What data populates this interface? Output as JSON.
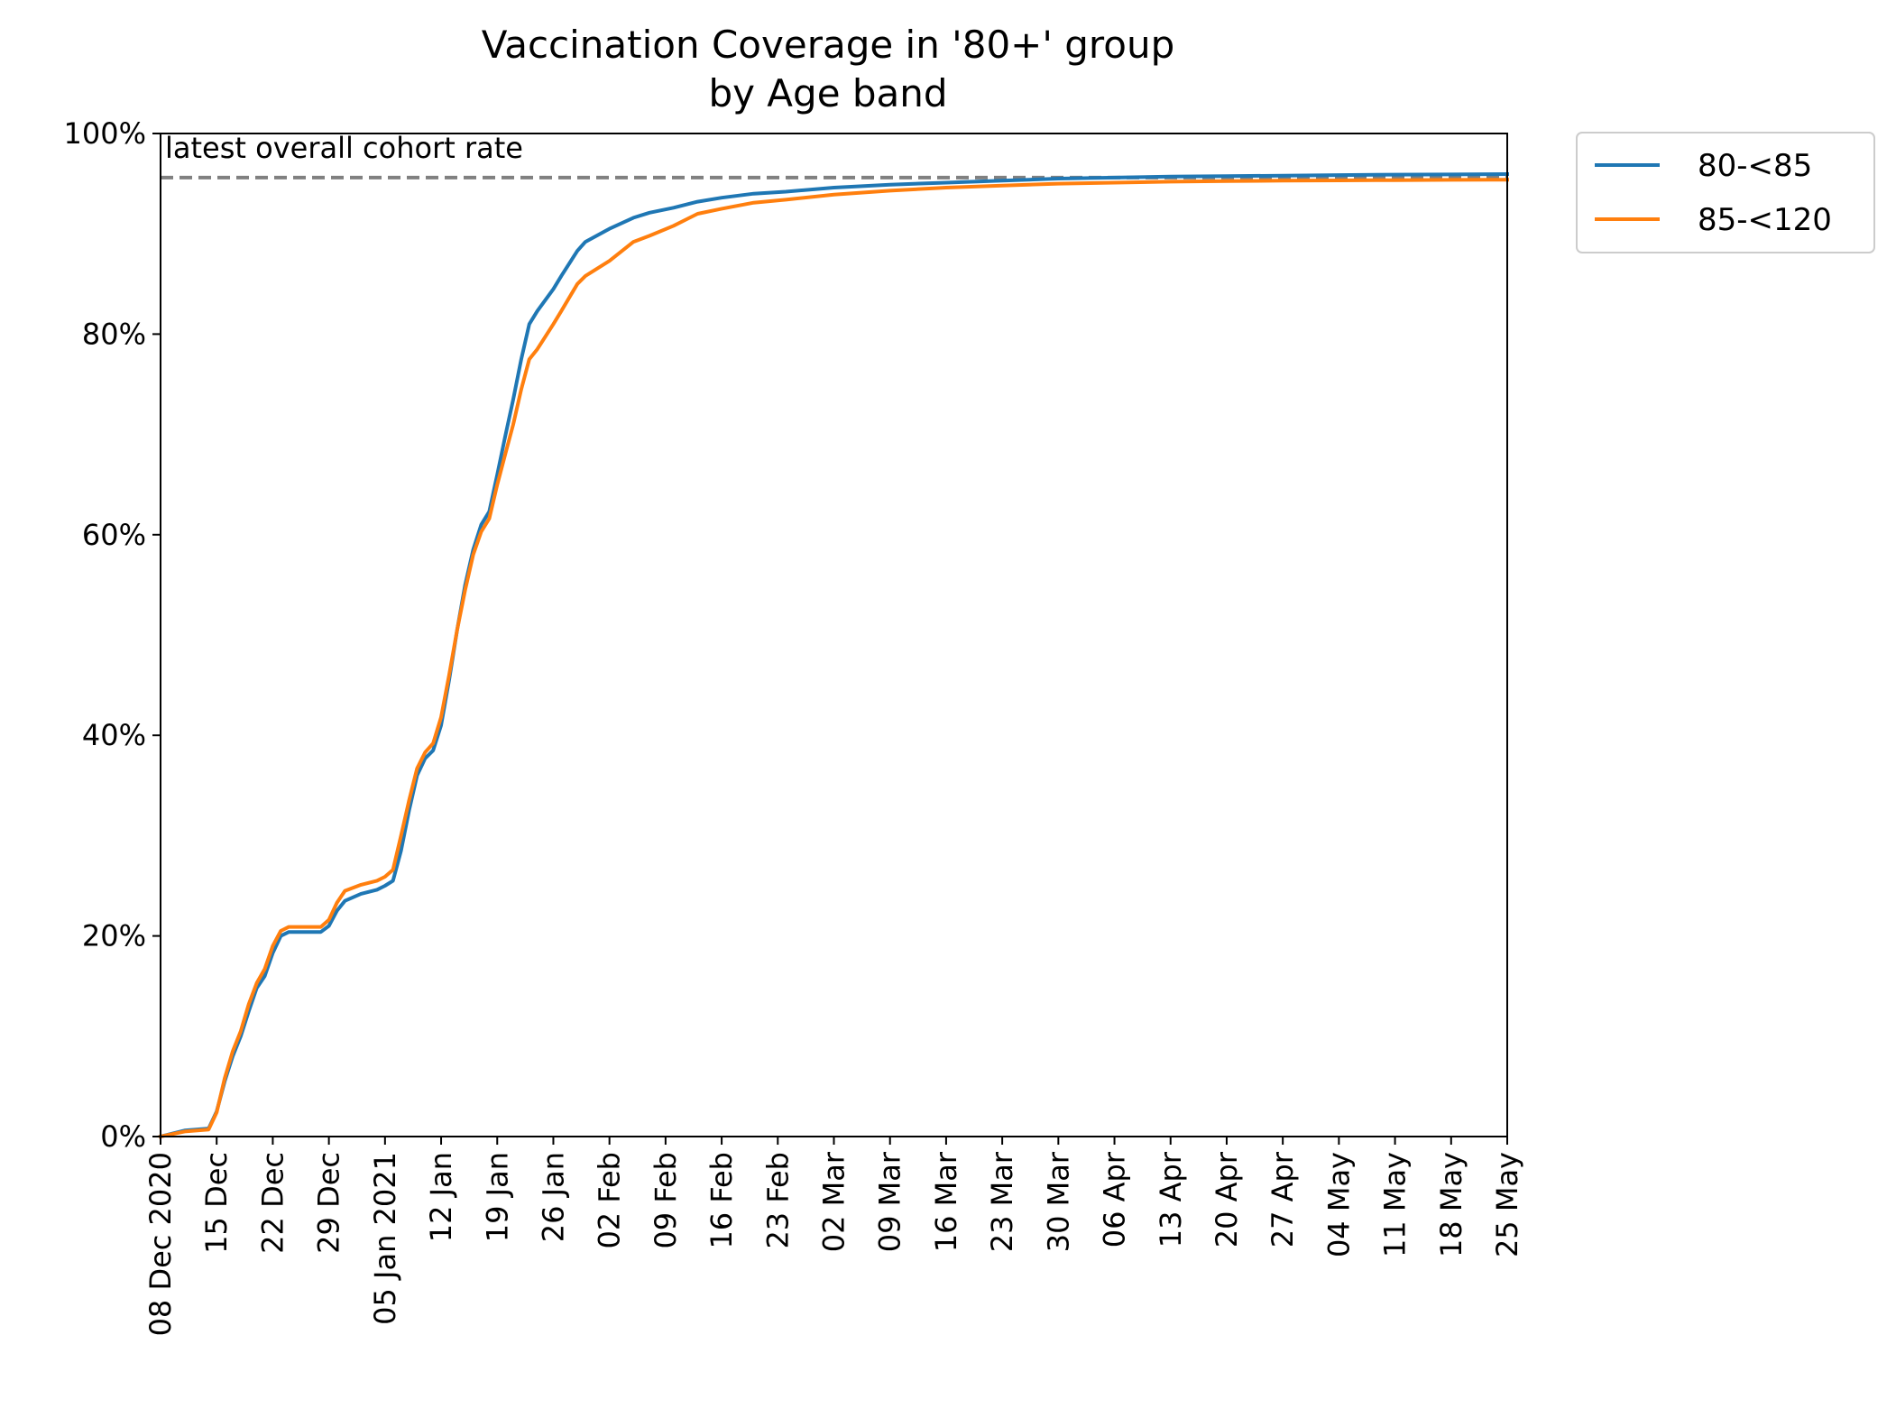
{
  "chart_data": {
    "type": "line",
    "title": "Vaccination Coverage in '80+' group",
    "subtitle": "by Age band",
    "xlabel": "",
    "ylabel": "",
    "ylim": [
      0,
      100
    ],
    "xlim": [
      "2020-12-08",
      "2021-05-25"
    ],
    "grid": false,
    "legend_position": "outside-top-right",
    "y_ticks": [
      "0%",
      "20%",
      "40%",
      "60%",
      "80%",
      "100%"
    ],
    "y_tick_values": [
      0,
      20,
      40,
      60,
      80,
      100
    ],
    "x_ticks": [
      {
        "date": "2020-12-08",
        "label": "08 Dec 2020"
      },
      {
        "date": "2020-12-15",
        "label": "15 Dec"
      },
      {
        "date": "2020-12-22",
        "label": "22 Dec"
      },
      {
        "date": "2020-12-29",
        "label": "29 Dec"
      },
      {
        "date": "2021-01-05",
        "label": "05 Jan 2021"
      },
      {
        "date": "2021-01-12",
        "label": "12 Jan"
      },
      {
        "date": "2021-01-19",
        "label": "19 Jan"
      },
      {
        "date": "2021-01-26",
        "label": "26 Jan"
      },
      {
        "date": "2021-02-02",
        "label": "02 Feb"
      },
      {
        "date": "2021-02-09",
        "label": "09 Feb"
      },
      {
        "date": "2021-02-16",
        "label": "16 Feb"
      },
      {
        "date": "2021-02-23",
        "label": "23 Feb"
      },
      {
        "date": "2021-03-02",
        "label": "02 Mar"
      },
      {
        "date": "2021-03-09",
        "label": "09 Mar"
      },
      {
        "date": "2021-03-16",
        "label": "16 Mar"
      },
      {
        "date": "2021-03-23",
        "label": "23 Mar"
      },
      {
        "date": "2021-03-30",
        "label": "30 Mar"
      },
      {
        "date": "2021-04-06",
        "label": "06 Apr"
      },
      {
        "date": "2021-04-13",
        "label": "13 Apr"
      },
      {
        "date": "2021-04-20",
        "label": "20 Apr"
      },
      {
        "date": "2021-04-27",
        "label": "27 Apr"
      },
      {
        "date": "2021-05-04",
        "label": "04 May"
      },
      {
        "date": "2021-05-11",
        "label": "11 May"
      },
      {
        "date": "2021-05-18",
        "label": "18 May"
      },
      {
        "date": "2021-05-25",
        "label": "25 May"
      }
    ],
    "reference_line": {
      "label": "latest overall cohort rate",
      "value": 95.6,
      "color": "#808080",
      "style": "dashed"
    },
    "series": [
      {
        "name": "80-<85",
        "color": "#1f77b4",
        "points": [
          [
            "2020-12-08",
            0.0
          ],
          [
            "2020-12-11",
            0.6
          ],
          [
            "2020-12-14",
            0.8
          ],
          [
            "2020-12-15",
            2.5
          ],
          [
            "2020-12-16",
            5.5
          ],
          [
            "2020-12-17",
            8.0
          ],
          [
            "2020-12-18",
            10.0
          ],
          [
            "2020-12-19",
            12.5
          ],
          [
            "2020-12-20",
            14.8
          ],
          [
            "2020-12-21",
            16.0
          ],
          [
            "2020-12-22",
            18.3
          ],
          [
            "2020-12-23",
            20.0
          ],
          [
            "2020-12-24",
            20.4
          ],
          [
            "2020-12-28",
            20.4
          ],
          [
            "2020-12-29",
            21.0
          ],
          [
            "2020-12-30",
            22.5
          ],
          [
            "2020-12-31",
            23.5
          ],
          [
            "2021-01-02",
            24.2
          ],
          [
            "2021-01-04",
            24.6
          ],
          [
            "2021-01-05",
            25.0
          ],
          [
            "2021-01-06",
            25.5
          ],
          [
            "2021-01-07",
            28.5
          ],
          [
            "2021-01-08",
            32.5
          ],
          [
            "2021-01-09",
            36.0
          ],
          [
            "2021-01-10",
            37.7
          ],
          [
            "2021-01-11",
            38.5
          ],
          [
            "2021-01-12",
            41.0
          ],
          [
            "2021-01-13",
            45.5
          ],
          [
            "2021-01-14",
            50.5
          ],
          [
            "2021-01-15",
            55.0
          ],
          [
            "2021-01-16",
            58.5
          ],
          [
            "2021-01-17",
            61.0
          ],
          [
            "2021-01-18",
            62.3
          ],
          [
            "2021-01-19",
            66.0
          ],
          [
            "2021-01-20",
            69.8
          ],
          [
            "2021-01-21",
            73.5
          ],
          [
            "2021-01-22",
            77.5
          ],
          [
            "2021-01-23",
            81.0
          ],
          [
            "2021-01-24",
            82.3
          ],
          [
            "2021-01-26",
            84.5
          ],
          [
            "2021-01-27",
            85.8
          ],
          [
            "2021-01-29",
            88.3
          ],
          [
            "2021-01-30",
            89.2
          ],
          [
            "2021-02-02",
            90.5
          ],
          [
            "2021-02-05",
            91.6
          ],
          [
            "2021-02-07",
            92.1
          ],
          [
            "2021-02-10",
            92.6
          ],
          [
            "2021-02-13",
            93.2
          ],
          [
            "2021-02-16",
            93.6
          ],
          [
            "2021-02-20",
            94.0
          ],
          [
            "2021-02-24",
            94.2
          ],
          [
            "2021-03-02",
            94.6
          ],
          [
            "2021-03-09",
            94.9
          ],
          [
            "2021-03-16",
            95.1
          ],
          [
            "2021-03-23",
            95.3
          ],
          [
            "2021-03-30",
            95.5
          ],
          [
            "2021-04-06",
            95.6
          ],
          [
            "2021-04-13",
            95.7
          ],
          [
            "2021-04-20",
            95.75
          ],
          [
            "2021-04-27",
            95.8
          ],
          [
            "2021-05-04",
            95.85
          ],
          [
            "2021-05-11",
            95.9
          ],
          [
            "2021-05-18",
            95.92
          ],
          [
            "2021-05-25",
            95.95
          ]
        ]
      },
      {
        "name": "85-<120",
        "color": "#ff7f0e",
        "points": [
          [
            "2020-12-08",
            0.0
          ],
          [
            "2020-12-11",
            0.5
          ],
          [
            "2020-12-14",
            0.7
          ],
          [
            "2020-12-15",
            2.4
          ],
          [
            "2020-12-16",
            5.8
          ],
          [
            "2020-12-17",
            8.5
          ],
          [
            "2020-12-18",
            10.5
          ],
          [
            "2020-12-19",
            13.2
          ],
          [
            "2020-12-20",
            15.3
          ],
          [
            "2020-12-21",
            16.7
          ],
          [
            "2020-12-22",
            19.0
          ],
          [
            "2020-12-23",
            20.5
          ],
          [
            "2020-12-24",
            20.9
          ],
          [
            "2020-12-28",
            20.9
          ],
          [
            "2020-12-29",
            21.6
          ],
          [
            "2020-12-30",
            23.3
          ],
          [
            "2020-12-31",
            24.5
          ],
          [
            "2021-01-02",
            25.1
          ],
          [
            "2021-01-04",
            25.5
          ],
          [
            "2021-01-05",
            25.9
          ],
          [
            "2021-01-06",
            26.6
          ],
          [
            "2021-01-07",
            30.0
          ],
          [
            "2021-01-08",
            33.5
          ],
          [
            "2021-01-09",
            36.7
          ],
          [
            "2021-01-10",
            38.3
          ],
          [
            "2021-01-11",
            39.2
          ],
          [
            "2021-01-12",
            41.8
          ],
          [
            "2021-01-13",
            46.0
          ],
          [
            "2021-01-14",
            50.5
          ],
          [
            "2021-01-15",
            54.5
          ],
          [
            "2021-01-16",
            58.0
          ],
          [
            "2021-01-17",
            60.3
          ],
          [
            "2021-01-18",
            61.6
          ],
          [
            "2021-01-19",
            65.0
          ],
          [
            "2021-01-20",
            68.0
          ],
          [
            "2021-01-21",
            71.0
          ],
          [
            "2021-01-22",
            74.5
          ],
          [
            "2021-01-23",
            77.5
          ],
          [
            "2021-01-24",
            78.5
          ],
          [
            "2021-01-26",
            81.0
          ],
          [
            "2021-01-27",
            82.3
          ],
          [
            "2021-01-29",
            85.0
          ],
          [
            "2021-01-30",
            85.8
          ],
          [
            "2021-02-02",
            87.3
          ],
          [
            "2021-02-05",
            89.2
          ],
          [
            "2021-02-07",
            89.8
          ],
          [
            "2021-02-10",
            90.8
          ],
          [
            "2021-02-13",
            92.0
          ],
          [
            "2021-02-16",
            92.5
          ],
          [
            "2021-02-20",
            93.1
          ],
          [
            "2021-02-24",
            93.4
          ],
          [
            "2021-03-02",
            93.9
          ],
          [
            "2021-03-09",
            94.3
          ],
          [
            "2021-03-16",
            94.6
          ],
          [
            "2021-03-23",
            94.8
          ],
          [
            "2021-03-30",
            95.0
          ],
          [
            "2021-04-06",
            95.1
          ],
          [
            "2021-04-13",
            95.2
          ],
          [
            "2021-04-20",
            95.25
          ],
          [
            "2021-04-27",
            95.3
          ],
          [
            "2021-05-04",
            95.32
          ],
          [
            "2021-05-11",
            95.35
          ],
          [
            "2021-05-18",
            95.38
          ],
          [
            "2021-05-25",
            95.4
          ]
        ]
      }
    ]
  }
}
